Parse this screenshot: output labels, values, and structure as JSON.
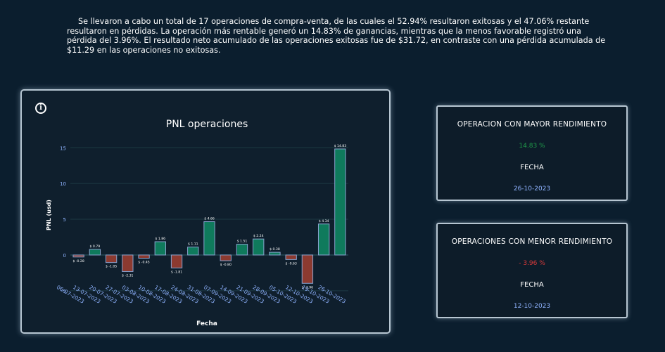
{
  "summary": "Se llevaron a cabo un total de 17 operaciones de compra-venta, de las cuales el 52.94% resultaron exitosas y el 47.06% restante resultaron en pérdidas. La operación más rentable generó un 14.83% de ganancias, mientras que la menos favorable registró una pérdida del 3.96%. El resultado neto acumulado de las operaciones exitosas fue de $31.72, en contraste con una pérdida acumulada de $11.29 en las operaciones no exitosas.",
  "info_icon_glyph": "i",
  "best_card": {
    "title": "OPERACION CON MAYOR RENDIMIENTO",
    "value": "14.83 %",
    "label": "FECHA",
    "date": "26-10-2023"
  },
  "worst_card": {
    "title": "OPERACIONES CON MENOR RENDIMIENTO",
    "value": "- 3.96 %",
    "label": "FECHA",
    "date": "12-10-2023"
  },
  "colors": {
    "positive": "#0f7a5c",
    "negative": "#8c3a30",
    "bar_border": "#8aa3cf",
    "axis_text": "#8fb3ff",
    "grid": "#1c3a44"
  },
  "chart_data": {
    "type": "bar",
    "title": "PNL operaciones",
    "xlabel": "Fecha",
    "ylabel": "PNL (usd)",
    "ylim": [
      -5.9,
      16.5
    ],
    "yticks": [
      -5,
      0,
      5,
      10,
      15
    ],
    "grid": true,
    "categories": [
      "06-07-2023",
      "13-07-2023",
      "20-07-2023",
      "27-07-2023",
      "03-08-2023",
      "10-08-2023",
      "17-08-2023",
      "24-08-2023",
      "31-08-2023",
      "07-09-2023",
      "14-09-2023",
      "21-09-2023",
      "28-09-2023",
      "05-10-2023",
      "12-10-2023",
      "19-10-2023",
      "26-10-2023"
    ],
    "values": [
      -0.28,
      0.79,
      -1.05,
      -2.31,
      -0.45,
      1.86,
      -1.81,
      1.11,
      4.66,
      -0.8,
      1.51,
      2.24,
      0.38,
      -0.63,
      -3.96,
      4.34,
      14.83
    ],
    "data_labels": [
      "$ -0.28",
      "$ 0.79",
      "$ -1.05",
      "$ -2.31",
      "$ -0.45",
      "$ 1.86",
      "$ -1.81",
      "$ 1.11",
      "$ 4.66",
      "$ -0.80",
      "$ 1.51",
      "$ 2.24",
      "$ 0.38",
      "$ -0.63",
      "$ -3.96",
      "$ 4.34",
      "$ 14.83"
    ]
  }
}
